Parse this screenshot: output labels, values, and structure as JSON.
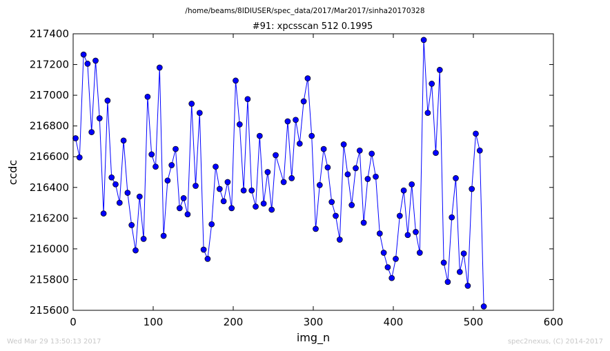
{
  "header": {
    "path": "/home/beams/8IDIUSER/spec_data/2017/Mar2017/sinha20170328"
  },
  "footer": {
    "timestamp": "Wed Mar 29 13:50:13 2017",
    "credit": "spec2nexus, (C) 2014-2017"
  },
  "colors": {
    "series": "#0000ff",
    "footer_text": "#c8c8c8"
  },
  "chart_data": {
    "type": "line",
    "title": "#91: xpcsscan 512 0.1995",
    "xlabel": "img_n",
    "ylabel": "ccdc",
    "xlim": [
      0,
      600
    ],
    "ylim": [
      215600,
      217400
    ],
    "xticks": [
      0,
      100,
      200,
      300,
      400,
      500,
      600
    ],
    "yticks": [
      215600,
      215800,
      216000,
      216200,
      216400,
      216600,
      216800,
      217000,
      217200,
      217400
    ],
    "grid": false,
    "markers": "circle",
    "series": [
      {
        "x": [
          3,
          8,
          13,
          18,
          23,
          28,
          33,
          38,
          43,
          48,
          53,
          58,
          63,
          68,
          73,
          78,
          83,
          88,
          93,
          98,
          103,
          108,
          113,
          118,
          123,
          128,
          133,
          138,
          143,
          148,
          153,
          158,
          163,
          168,
          173,
          178,
          183,
          188,
          193,
          198,
          203,
          208,
          213,
          218,
          223,
          228,
          233,
          238,
          243,
          248,
          253,
          263,
          268,
          273,
          278,
          283,
          288,
          293,
          298,
          303,
          308,
          313,
          318,
          323,
          328,
          333,
          338,
          343,
          348,
          353,
          358,
          363,
          368,
          373,
          378,
          383,
          388,
          393,
          398,
          403,
          408,
          413,
          418,
          423,
          428,
          433,
          438,
          443,
          448,
          453,
          458,
          463,
          468,
          473,
          478,
          483,
          488,
          493,
          498,
          503,
          508,
          513
        ],
        "y": [
          216720,
          216595,
          217265,
          217205,
          216760,
          217225,
          216850,
          216230,
          216965,
          216465,
          216420,
          216300,
          216705,
          216365,
          216155,
          215990,
          216340,
          216065,
          216990,
          216615,
          216535,
          217180,
          216085,
          216445,
          216545,
          216650,
          216265,
          216330,
          216225,
          216945,
          216410,
          216885,
          215995,
          215935,
          216160,
          216535,
          216390,
          216310,
          216435,
          216265,
          217095,
          216810,
          216380,
          216975,
          216380,
          216275,
          216735,
          216295,
          216500,
          216255,
          216610,
          216435,
          216830,
          216460,
          216840,
          216685,
          216960,
          217110,
          216735,
          216130,
          216415,
          216650,
          216530,
          216305,
          216215,
          216060,
          216680,
          216485,
          216285,
          216525,
          216640,
          216170,
          216455,
          216620,
          216470,
          216100,
          215975,
          215880,
          215810,
          215935,
          216215,
          216380,
          216090,
          216420,
          216110,
          215975,
          217360,
          216885,
          217075,
          216625,
          217165,
          215910,
          215785,
          216205,
          216460,
          215850,
          215970,
          215760,
          216390,
          216750,
          216640,
          215625
        ]
      }
    ]
  }
}
